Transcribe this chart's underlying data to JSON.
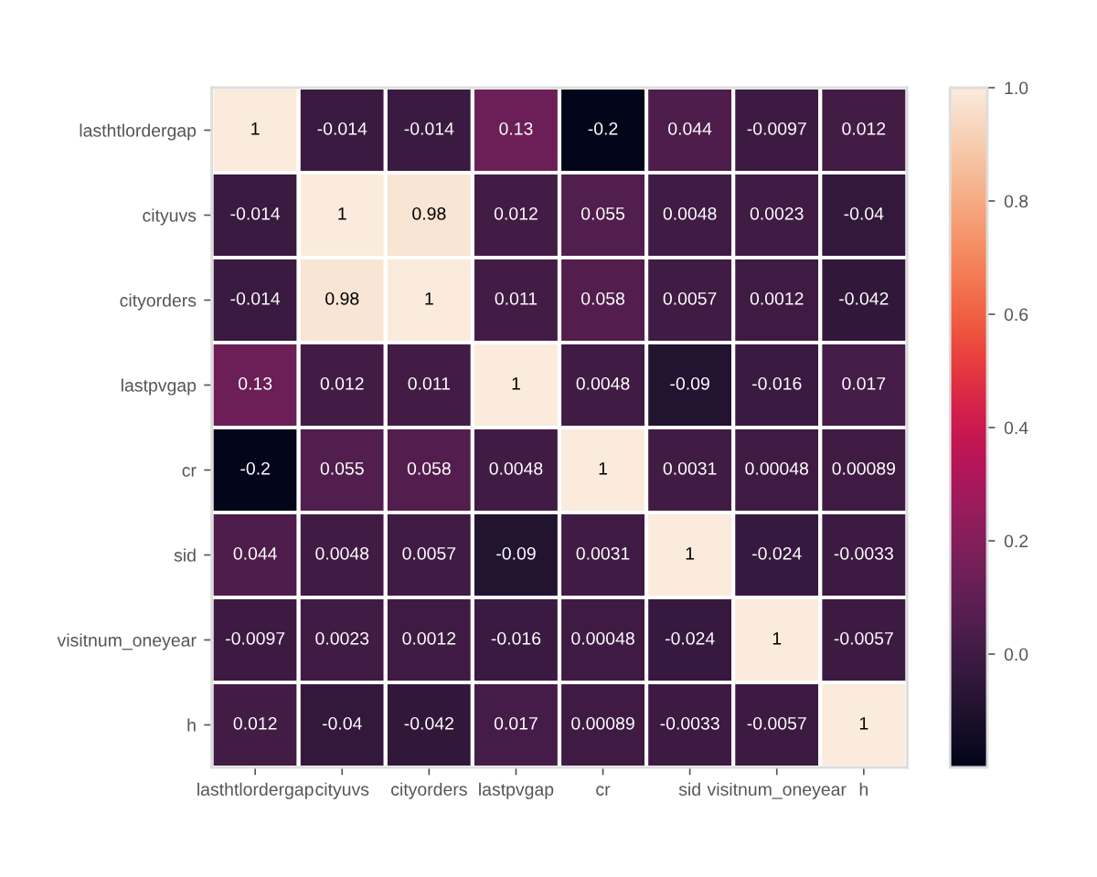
{
  "chart_data": {
    "type": "heatmap",
    "categories": [
      "lasthtlordergap",
      "cityuvs",
      "cityorders",
      "lastpvgap",
      "cr",
      "sid",
      "visitnum_oneyear",
      "h"
    ],
    "y_categories": [
      "lasthtlordergap",
      "cityuvs",
      "cityorders",
      "lastpvgap",
      "cr",
      "sid",
      "visitnum_oneyear",
      "h"
    ],
    "cells": [
      [
        1,
        -0.014,
        -0.014,
        0.13,
        -0.2,
        0.044,
        -0.0097,
        0.012
      ],
      [
        -0.014,
        1,
        0.98,
        0.012,
        0.055,
        0.0048,
        0.0023,
        -0.04
      ],
      [
        -0.014,
        0.98,
        1,
        0.011,
        0.058,
        0.0057,
        0.0012,
        -0.042
      ],
      [
        0.13,
        0.012,
        0.011,
        1,
        0.0048,
        -0.09,
        -0.016,
        0.017
      ],
      [
        -0.2,
        0.055,
        0.058,
        0.0048,
        1,
        0.0031,
        0.00048,
        0.00089
      ],
      [
        0.044,
        0.0048,
        0.0057,
        -0.09,
        0.0031,
        1,
        -0.024,
        -0.0033
      ],
      [
        -0.0097,
        0.0023,
        0.0012,
        -0.016,
        0.00048,
        -0.024,
        1,
        -0.0057
      ],
      [
        0.012,
        -0.04,
        -0.042,
        0.017,
        0.00089,
        -0.0033,
        -0.0057,
        1
      ]
    ],
    "clim": [
      -0.2,
      1
    ],
    "cticks": [
      {
        "value": 0,
        "label": "0.0"
      },
      {
        "value": 0.2,
        "label": "0.2"
      },
      {
        "value": 0.4,
        "label": "0.4"
      },
      {
        "value": 0.6,
        "label": "0.6"
      },
      {
        "value": 0.8,
        "label": "0.8"
      },
      {
        "value": 1,
        "label": "1.0"
      }
    ],
    "data_labels": true
  }
}
